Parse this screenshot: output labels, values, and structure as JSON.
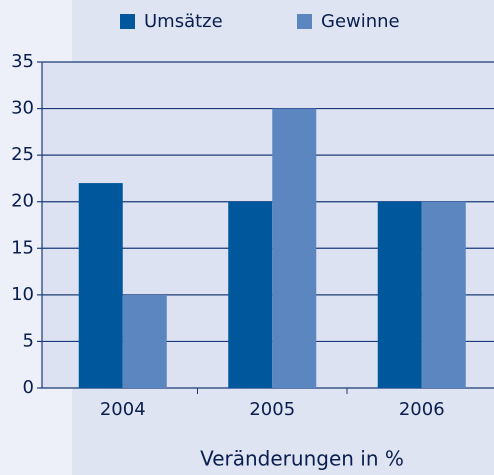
{
  "chart_data": {
    "type": "bar",
    "categories": [
      "2004",
      "2005",
      "2006"
    ],
    "series": [
      {
        "name": "Umsätze",
        "color": "#00579b",
        "values": [
          22,
          20,
          20
        ]
      },
      {
        "name": "Gewinne",
        "color": "#5b86c0",
        "values": [
          10,
          30,
          20
        ]
      }
    ],
    "xlabel": "Veränderungen in %",
    "ylim": [
      0,
      35
    ],
    "yticks": [
      0,
      5,
      10,
      15,
      20,
      25,
      30,
      35
    ],
    "grid": true,
    "legend": "top"
  }
}
